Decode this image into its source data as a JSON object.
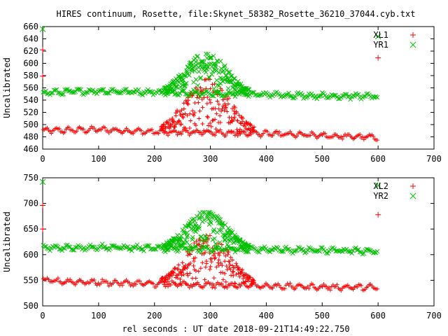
{
  "title": "HIRES continuum, Rosette, file:Skynet_58382_Rosette_36210_37044.cyb.txt",
  "xlabel": "rel seconds : UT date 2018-09-21T14:49:22.750",
  "chart_data": [
    {
      "type": "scatter",
      "ylabel": "Uncalibrated",
      "xlim": [
        0,
        700
      ],
      "ylim": [
        460,
        660
      ],
      "xticks": [
        0,
        100,
        200,
        300,
        400,
        500,
        600,
        700
      ],
      "yticks": [
        460,
        480,
        500,
        520,
        540,
        560,
        580,
        600,
        620,
        640,
        660
      ],
      "grid": false,
      "legend_position": "top-right",
      "series": [
        {
          "name": "XL1",
          "marker": "plus",
          "color": "#ff0000",
          "baseline": {
            "x": [
              0,
              100,
              200,
              300,
              400,
              500,
              600
            ],
            "y": [
              490,
              492,
              488,
              487,
              485,
              482,
              479
            ]
          },
          "source_bump": {
            "x_start": 210,
            "x_end": 380,
            "peak": 575
          },
          "outliers": {
            "x": [
              0,
              0,
              600
            ],
            "y": [
              622,
              579,
              609
            ]
          }
        },
        {
          "name": "YR1",
          "marker": "cross",
          "color": "#00c000",
          "baseline": {
            "x": [
              0,
              100,
              200,
              300,
              400,
              500,
              600
            ],
            "y": [
              552,
              555,
              553,
              551,
              549,
              547,
              546
            ]
          },
          "source_bump": {
            "x_start": 215,
            "x_end": 370,
            "peak": 619
          },
          "outliers": {
            "x": [
              0,
              600
            ],
            "y": [
              656,
              644
            ]
          }
        }
      ]
    },
    {
      "type": "scatter",
      "ylabel": "Uncalibrated",
      "xlim": [
        0,
        700
      ],
      "ylim": [
        500,
        750
      ],
      "xticks": [
        0,
        100,
        200,
        300,
        400,
        500,
        600,
        700
      ],
      "yticks": [
        500,
        550,
        600,
        650,
        700,
        750
      ],
      "grid": false,
      "legend_position": "top-right",
      "series": [
        {
          "name": "XL2",
          "marker": "plus",
          "color": "#ff0000",
          "baseline": {
            "x": [
              0,
              100,
              200,
              300,
              400,
              500,
              600
            ],
            "y": [
              549,
              546,
              543,
              541,
              539,
              537,
              536
            ]
          },
          "source_bump": {
            "x_start": 210,
            "x_end": 380,
            "peak": 640
          },
          "outliers": {
            "x": [
              0,
              0,
              600
            ],
            "y": [
              696,
              650,
              678
            ]
          }
        },
        {
          "name": "YR2",
          "marker": "cross",
          "color": "#00c000",
          "baseline": {
            "x": [
              0,
              100,
              200,
              300,
              400,
              500,
              600
            ],
            "y": [
              613,
              615,
              612,
              611,
              610,
              608,
              607
            ]
          },
          "source_bump": {
            "x_start": 215,
            "x_end": 370,
            "peak": 685
          },
          "outliers": {
            "x": [
              0,
              600
            ],
            "y": [
              742,
              735
            ]
          }
        }
      ]
    }
  ]
}
